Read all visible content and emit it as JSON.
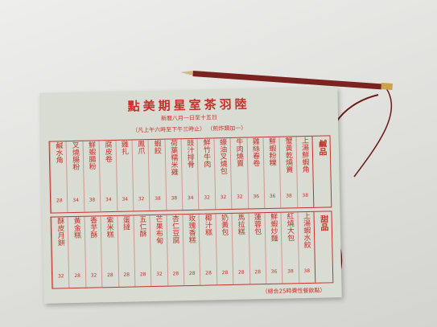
{
  "header": {
    "title": "陸羽茶室星期美點",
    "date_line": "新曆八月一日至十五日",
    "hours_line": "（凡上午六時至下午三時止）",
    "note": "（煎炸類加一）"
  },
  "sections": [
    {
      "label": "鹹品",
      "items": [
        {
          "name": "上湯鮮蝦角",
          "price": 38
        },
        {
          "name": "蟹黃乾燒賣",
          "price": 38
        },
        {
          "name": "鮮蝦粉粿",
          "price": 36
        },
        {
          "name": "雞絲春卷",
          "price": 36
        },
        {
          "name": "牛肉燒賣",
          "price": 32
        },
        {
          "name": "蠔油叉燒包",
          "price": 32
        },
        {
          "name": "鮮竹牛肉",
          "price": 32
        },
        {
          "name": "豉汁排骨",
          "price": 34
        },
        {
          "name": "荷葉糯米雞",
          "price": 38
        },
        {
          "name": "蝦餃",
          "price": 38
        },
        {
          "name": "鳳爪",
          "price": 32
        },
        {
          "name": "雞扎",
          "price": 34
        },
        {
          "name": "腐皮卷",
          "price": 34
        },
        {
          "name": "鮮蝦腸粉",
          "price": 38
        },
        {
          "name": "叉燒腸粉",
          "price": 34
        },
        {
          "name": "鹹水角",
          "price": 28
        }
      ]
    },
    {
      "label": "甜品",
      "items": [
        {
          "name": "上湯蝦水餃",
          "price": 38
        },
        {
          "name": "紅燒大包",
          "price": 38
        },
        {
          "name": "鮮蝦炒麵",
          "price": 36
        },
        {
          "name": "蓮蓉包",
          "price": 28
        },
        {
          "name": "馬拉糕",
          "price": 28
        },
        {
          "name": "奶黃包",
          "price": 28
        },
        {
          "name": "椰汁糕",
          "price": 28
        },
        {
          "name": "玫瑰香糕",
          "price": 28
        },
        {
          "name": "杏仁豆腐",
          "price": 28
        },
        {
          "name": "芒果布甸",
          "price": 32
        },
        {
          "name": "五仁酥",
          "price": 28
        },
        {
          "name": "蛋撻",
          "price": 28
        },
        {
          "name": "紫米糕",
          "price": 28
        },
        {
          "name": "香芋酥",
          "price": 32
        },
        {
          "name": "黃金糕",
          "price": 28
        },
        {
          "name": "酥皮月餅",
          "price": 32
        }
      ]
    }
  ],
  "footer": "（總合25時費性餐飲點）"
}
